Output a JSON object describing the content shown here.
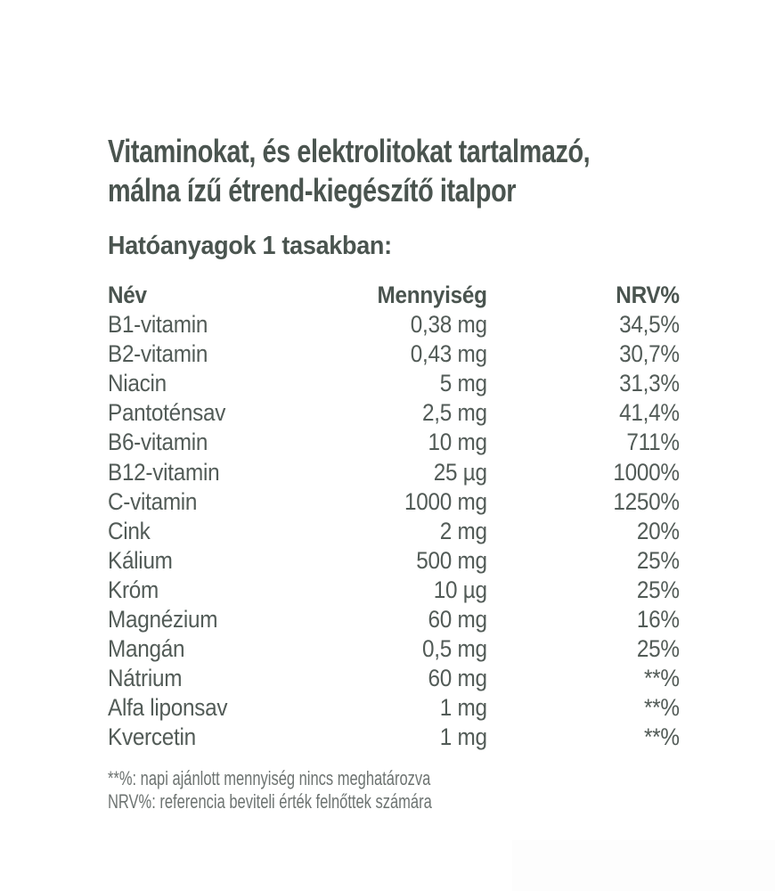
{
  "header": {
    "title_line1": "Vitaminokat, és elektrolitokat tartalmazó,",
    "title_line2": "málna ízű étrend-kiegészítő italpor",
    "subtitle": "Hatóanyagok 1 tasakban:"
  },
  "table": {
    "headers": [
      "Név",
      "Mennyiség",
      "NRV%"
    ],
    "rows": [
      [
        "B1-vitamin",
        "0,38 mg",
        "34,5%"
      ],
      [
        "B2-vitamin",
        "0,43 mg",
        "30,7%"
      ],
      [
        "Niacin",
        "5 mg",
        "31,3%"
      ],
      [
        "Pantoténsav",
        "2,5 mg",
        "41,4%"
      ],
      [
        "B6-vitamin",
        "10 mg",
        "711%"
      ],
      [
        "B12-vitamin",
        "25 µg",
        "1000%"
      ],
      [
        "C-vitamin",
        "1000 mg",
        "1250%"
      ],
      [
        "Cink",
        "2 mg",
        "20%"
      ],
      [
        "Kálium",
        "500 mg",
        "25%"
      ],
      [
        "Króm",
        "10 µg",
        "25%"
      ],
      [
        "Magnézium",
        "60 mg",
        "16%"
      ],
      [
        "Mangán",
        "0,5 mg",
        "25%"
      ],
      [
        "Nátrium",
        "60 mg",
        "**%"
      ],
      [
        "Alfa liponsav",
        "1 mg",
        "**%"
      ],
      [
        "Kvercetin",
        "1 mg",
        "**%"
      ]
    ]
  },
  "footnotes": {
    "line1": "**%: napi ajánlott mennyiség nincs meghatározva",
    "line2": "NRV%: referencia beviteli érték felnőttek számára"
  },
  "colors": {
    "background": "#ffffff",
    "heading_text": "#4a544f",
    "body_text": "#525b57",
    "footnote_text": "#6d7371"
  }
}
